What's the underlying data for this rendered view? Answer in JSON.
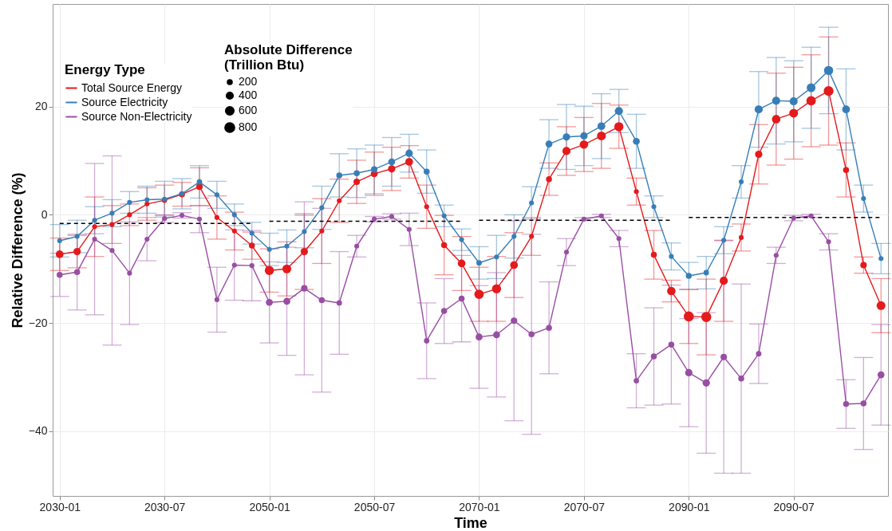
{
  "chart_data": {
    "type": "line",
    "xlabel": "Time",
    "ylabel": "Relative Difference (%)",
    "legend_title": [
      "Energy Type",
      "Absolute Difference (Trillion Btu)"
    ],
    "categories": [
      "2030-01",
      null,
      null,
      null,
      null,
      null,
      "2030-07",
      null,
      null,
      null,
      null,
      null,
      "2050-01",
      null,
      null,
      null,
      null,
      null,
      "2050-07",
      null,
      null,
      null,
      null,
      null,
      "2070-01",
      null,
      null,
      null,
      null,
      null,
      "2070-07",
      null,
      null,
      null,
      null,
      null,
      "2090-01",
      null,
      null,
      null,
      null,
      null,
      "2090-07",
      null,
      null,
      null,
      null,
      null
    ],
    "ylim": [
      -52,
      39
    ],
    "yticks": [
      -40,
      -20,
      0,
      20
    ],
    "grid": true,
    "legend": "top left",
    "size_legend": [
      200,
      400,
      600,
      800
    ],
    "series": [
      {
        "name": "Total Source Energy",
        "color": "#e41a1c",
        "marker": "none",
        "values": [
          -7.3,
          -6.8,
          -2.2,
          -1.8,
          0,
          2.0,
          2.7,
          3.8,
          5.2,
          -0.5,
          -3,
          -5.7,
          -10.3,
          -10,
          -6.8,
          -3,
          2.6,
          6.1,
          7.6,
          8.5,
          9.8,
          1.5,
          -5.6,
          -9,
          -14.7,
          -13.7,
          -9.3,
          -4,
          6.6,
          11.8,
          13,
          14.6,
          16.3,
          4.3,
          -7.4,
          -14.1,
          -18.8,
          -18.9,
          -12.2,
          -4.2,
          11.2,
          17.7,
          18.8,
          21.1,
          22.9,
          8.3,
          -9.3,
          -16.8
        ]
      },
      {
        "name": "Source Electricity",
        "color": "#377eb8",
        "marker": "none",
        "values": [
          -4.8,
          -4,
          -1,
          0.3,
          2.3,
          2.8,
          2.9,
          3.9,
          6.1,
          3.7,
          0,
          -3.4,
          -6.4,
          -5.8,
          -3.1,
          1.3,
          7.3,
          7.7,
          8.4,
          9.8,
          11.4,
          8,
          -0.2,
          -4.6,
          -8.9,
          -7.8,
          -4,
          2.2,
          13.1,
          14.4,
          14.6,
          16.4,
          19.2,
          13.6,
          1.5,
          -7.7,
          -11.3,
          -10.7,
          -4.7,
          6.1,
          19.5,
          21.1,
          21,
          23.5,
          26.7,
          19.5,
          3,
          -8.1
        ]
      },
      {
        "name": "Source Non-Electricity",
        "color": "#984ea3",
        "marker": "none",
        "values": [
          -11.1,
          -10.6,
          -4.5,
          -6.6,
          -10.8,
          -4.5,
          -0.7,
          -0.1,
          -0.8,
          -15.7,
          -9.3,
          -9.4,
          -16.2,
          -16,
          -13.6,
          -15.8,
          -16.3,
          -5.8,
          -0.8,
          -0.3,
          -2.7,
          -23.3,
          -17.8,
          -15.5,
          -22.6,
          -22.2,
          -19.6,
          -22.1,
          -20.9,
          -6.9,
          -0.8,
          -0.2,
          -4.4,
          -30.7,
          -26.2,
          -24,
          -29.2,
          -31.1,
          -26.3,
          -30.3,
          -25.7,
          -7.5,
          -0.6,
          -0.2,
          -5,
          -35,
          -34.9,
          -29.6
        ]
      },
      {
        "type": "bubble",
        "color": "#e41a1c",
        "values": [
          -7.3,
          -6.8,
          -2.2,
          -1.8,
          0,
          2.0,
          2.7,
          3.8,
          5.2,
          -0.5,
          -3,
          -5.7,
          -10.3,
          -10,
          -6.8,
          -3,
          2.6,
          6.1,
          7.6,
          8.5,
          9.8,
          1.5,
          -5.6,
          -9,
          -14.7,
          -13.7,
          -9.3,
          -4,
          6.6,
          11.8,
          13,
          14.6,
          16.3,
          4.3,
          -7.4,
          -14.1,
          -18.8,
          -18.9,
          -12.2,
          -4.2,
          11.2,
          17.7,
          18.8,
          21.1,
          22.9,
          8.3,
          -9.3,
          -16.8
        ],
        "sizes": [
          500,
          450,
          200,
          200,
          200,
          200,
          250,
          300,
          350,
          200,
          200,
          300,
          700,
          650,
          450,
          200,
          200,
          350,
          400,
          450,
          500,
          200,
          300,
          500,
          750,
          700,
          500,
          200,
          300,
          550,
          600,
          650,
          700,
          200,
          300,
          600,
          850,
          850,
          550,
          200,
          450,
          600,
          650,
          750,
          800,
          300,
          350,
          650
        ],
        "errors": [
          3,
          3,
          5.5,
          3.5,
          2,
          3,
          2.8,
          2.2,
          3.5,
          4,
          3.5,
          2.5,
          4,
          5,
          7,
          6,
          4,
          4,
          4,
          4,
          3,
          4,
          5.5,
          5,
          5,
          6,
          6,
          3.5,
          3,
          4.5,
          5,
          6,
          4,
          2.5,
          4.5,
          2,
          5,
          7,
          7.5,
          2.5,
          5.5,
          8.5,
          8.5,
          8.5,
          10,
          5,
          1.5,
          5
        ]
      },
      {
        "type": "bubble",
        "color": "#377eb8",
        "values": [
          -4.8,
          -4,
          -1,
          0.3,
          2.3,
          2.8,
          2.9,
          3.9,
          6.1,
          3.7,
          0,
          -3.4,
          -6.4,
          -5.8,
          -3.1,
          1.3,
          7.3,
          7.7,
          8.4,
          9.8,
          11.4,
          8,
          -0.2,
          -4.6,
          -8.9,
          -7.8,
          -4,
          2.2,
          13.1,
          14.4,
          14.6,
          16.4,
          19.2,
          13.6,
          1.5,
          -7.7,
          -11.3,
          -10.7,
          -4.7,
          6.1,
          19.5,
          21.1,
          21,
          23.5,
          26.7,
          19.5,
          3,
          -8.1
        ],
        "sizes": [
          200,
          200,
          200,
          200,
          200,
          200,
          200,
          200,
          250,
          200,
          200,
          200,
          200,
          200,
          200,
          200,
          300,
          300,
          350,
          400,
          450,
          300,
          200,
          200,
          250,
          200,
          200,
          200,
          400,
          450,
          450,
          500,
          550,
          400,
          200,
          200,
          300,
          250,
          200,
          200,
          550,
          550,
          550,
          650,
          700,
          500,
          200,
          200
        ],
        "errors": [
          3,
          3,
          2.5,
          2.5,
          2,
          2.5,
          3.3,
          2.8,
          3,
          2.5,
          2,
          2,
          3,
          3,
          3,
          4,
          4,
          4.5,
          4.5,
          4.5,
          3.5,
          4,
          2,
          2,
          3,
          4,
          4,
          3,
          4.5,
          6,
          5.5,
          6,
          4,
          5,
          2,
          2.5,
          2.5,
          3,
          2.5,
          3,
          7,
          8,
          7.5,
          7.5,
          8,
          7.5,
          2.5,
          2.8
        ]
      },
      {
        "type": "bubble",
        "color": "#984ea3",
        "values": [
          -11.1,
          -10.6,
          -4.5,
          -6.6,
          -10.8,
          -4.5,
          -0.7,
          -0.1,
          -0.8,
          -15.7,
          -9.3,
          -9.4,
          -16.2,
          -16,
          -13.6,
          -15.8,
          -16.3,
          -5.8,
          -0.8,
          -0.3,
          -2.7,
          -23.3,
          -17.8,
          -15.5,
          -22.6,
          -22.2,
          -19.6,
          -22.1,
          -20.9,
          -6.9,
          -0.8,
          -0.2,
          -4.4,
          -30.7,
          -26.2,
          -24,
          -29.2,
          -31.1,
          -26.3,
          -30.3,
          -25.7,
          -7.5,
          -0.6,
          -0.2,
          -5,
          -35,
          -34.9,
          -29.6
        ],
        "sizes": [
          300,
          300,
          200,
          200,
          200,
          200,
          200,
          200,
          200,
          200,
          200,
          200,
          400,
          400,
          350,
          300,
          250,
          200,
          200,
          200,
          200,
          250,
          300,
          300,
          400,
          400,
          350,
          300,
          300,
          200,
          200,
          200,
          200,
          250,
          300,
          300,
          450,
          450,
          350,
          300,
          250,
          200,
          200,
          200,
          200,
          300,
          300,
          400
        ],
        "errors": [
          4,
          7,
          14,
          17.5,
          9.5,
          4,
          0.7,
          0.5,
          2.5,
          6,
          6.5,
          6.5,
          7.5,
          10,
          16,
          17,
          9.5,
          2,
          0.5,
          0.5,
          3,
          7,
          6,
          8,
          9.5,
          11.5,
          18.5,
          18.5,
          8.5,
          2.5,
          0.3,
          0.3,
          1.5,
          5,
          9,
          11,
          10,
          13,
          21.5,
          17.5,
          5.5,
          1.5,
          0.5,
          0.3,
          1.5,
          4.5,
          8.5,
          9.3
        ]
      },
      {
        "type": "line",
        "color": "#000000",
        "line_style": "dashed",
        "marker": "none",
        "values": [
          -1.6,
          -1.6,
          -1.6,
          -1.6,
          -1.6,
          -1.6,
          -1.6,
          -1.6,
          -1.6,
          -1.6,
          -1.6,
          -1.6,
          null,
          null,
          null,
          null,
          null,
          null,
          null,
          null,
          null,
          null,
          null,
          null,
          null,
          null,
          null,
          null,
          null,
          null,
          null,
          null,
          null,
          null,
          null,
          null,
          null,
          null,
          null,
          null,
          null,
          null,
          null,
          null,
          null,
          null,
          null,
          null
        ]
      },
      {
        "type": "line",
        "color": "#000000",
        "line_style": "dashed",
        "marker": "none",
        "values": [
          null,
          null,
          null,
          null,
          null,
          null,
          null,
          null,
          null,
          null,
          null,
          null,
          -1.2,
          -1.2,
          -1.2,
          -1.2,
          -1.2,
          -1.2,
          -1.2,
          -1.2,
          -1.2,
          -1.2,
          -1.2,
          -1.2,
          null,
          null,
          null,
          null,
          null,
          null,
          null,
          null,
          null,
          null,
          null,
          null,
          null,
          null,
          null,
          null,
          null,
          null,
          null,
          null,
          null,
          null,
          null,
          null
        ]
      },
      {
        "type": "line",
        "color": "#000000",
        "line_style": "dashed",
        "marker": "none",
        "values": [
          null,
          null,
          null,
          null,
          null,
          null,
          null,
          null,
          null,
          null,
          null,
          null,
          null,
          null,
          null,
          null,
          null,
          null,
          null,
          null,
          null,
          null,
          null,
          null,
          -1.0,
          -1.0,
          -1.0,
          -1.0,
          -1.0,
          -1.0,
          -1.0,
          -1.0,
          -1.0,
          -1.0,
          -1.0,
          -1.0,
          null,
          null,
          null,
          null,
          null,
          null,
          null,
          null,
          null,
          null,
          null,
          null
        ]
      },
      {
        "type": "line",
        "color": "#000000",
        "line_style": "dashed",
        "marker": "none",
        "values": [
          null,
          null,
          null,
          null,
          null,
          null,
          null,
          null,
          null,
          null,
          null,
          null,
          null,
          null,
          null,
          null,
          null,
          null,
          null,
          null,
          null,
          null,
          null,
          null,
          null,
          null,
          null,
          null,
          null,
          null,
          null,
          null,
          null,
          null,
          null,
          null,
          -0.5,
          -0.5,
          -0.5,
          -0.5,
          -0.5,
          -0.5,
          -0.5,
          -0.5,
          -0.5,
          -0.5,
          -0.5,
          -0.5
        ]
      }
    ]
  }
}
